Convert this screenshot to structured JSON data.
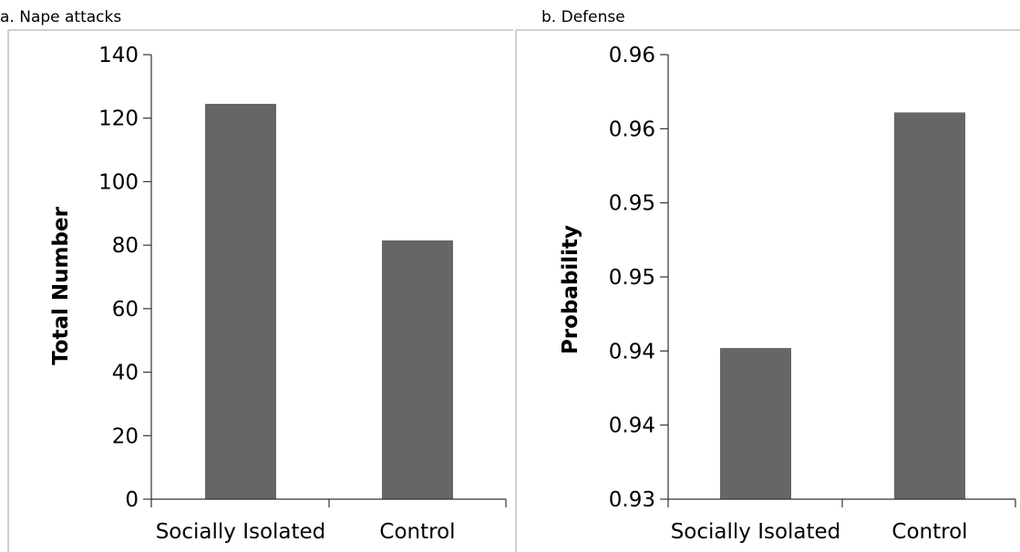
{
  "colors": {
    "bar": "#666666",
    "axis": "#333333",
    "frame": "#d0d0d0",
    "background": "#ffffff"
  },
  "chart_data": [
    {
      "type": "bar",
      "title": "a. Nape attacks",
      "xlabel": "",
      "ylabel": "Total Number",
      "categories": [
        "Socially Isolated",
        "Control"
      ],
      "values": [
        124.5,
        81.5
      ],
      "ylim": [
        0,
        140
      ],
      "yticks": [
        0,
        20,
        40,
        60,
        80,
        100,
        120,
        140
      ],
      "ytick_labels": [
        "0",
        "20",
        "40",
        "60",
        "80",
        "100",
        "120",
        "140"
      ],
      "grid": false,
      "legend": "none"
    },
    {
      "type": "bar",
      "title": "b. Defense",
      "xlabel": "",
      "ylabel": "Probability",
      "categories": [
        "Socially Isolated",
        "Control"
      ],
      "values": [
        0.9402,
        0.9561
      ],
      "ylim": [
        0.93,
        0.96
      ],
      "yticks": [
        0.93,
        0.935,
        0.94,
        0.945,
        0.95,
        0.955,
        0.96
      ],
      "ytick_labels": [
        "0.93",
        "0.94",
        "0.94",
        "0.95",
        "0.95",
        "0.96",
        "0.96"
      ],
      "grid": false,
      "legend": "none"
    }
  ]
}
